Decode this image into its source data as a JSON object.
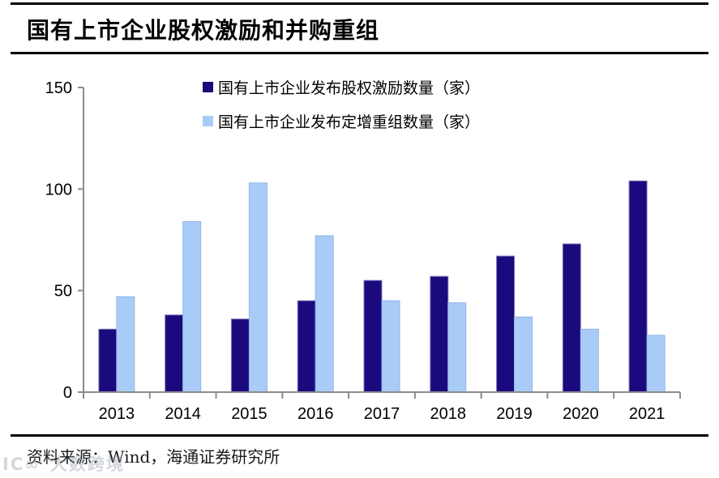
{
  "title": "国有上市企业股权激励和并购重组",
  "source": "资料来源：Wind，海通证券研究所",
  "watermark": {
    "logo": "IC∞",
    "text": "大数跨境"
  },
  "chart_data": {
    "type": "bar",
    "title": "国有上市企业股权激励和并购重组",
    "categories": [
      "2013",
      "2014",
      "2015",
      "2016",
      "2017",
      "2018",
      "2019",
      "2020",
      "2021"
    ],
    "series": [
      {
        "name": "国有上市企业发布股权激励数量（家）",
        "color": "#1A0A7E",
        "border_color": "#7d7ab8",
        "values": [
          31,
          38,
          36,
          45,
          55,
          57,
          67,
          73,
          104
        ]
      },
      {
        "name": "国有上市企业发布定增重组数量（家）",
        "color": "#A9CBF7",
        "border_color": "#94b6e8",
        "values": [
          47,
          84,
          103,
          77,
          45,
          44,
          37,
          31,
          28
        ]
      }
    ],
    "xlabel": "",
    "ylabel": "",
    "ylim": [
      0,
      150
    ],
    "yticks": [
      0,
      50,
      100,
      150
    ],
    "grid": false,
    "legend_position": "top-center",
    "axis_color": "#8c8c8c",
    "tick_label_color": "#000000"
  }
}
